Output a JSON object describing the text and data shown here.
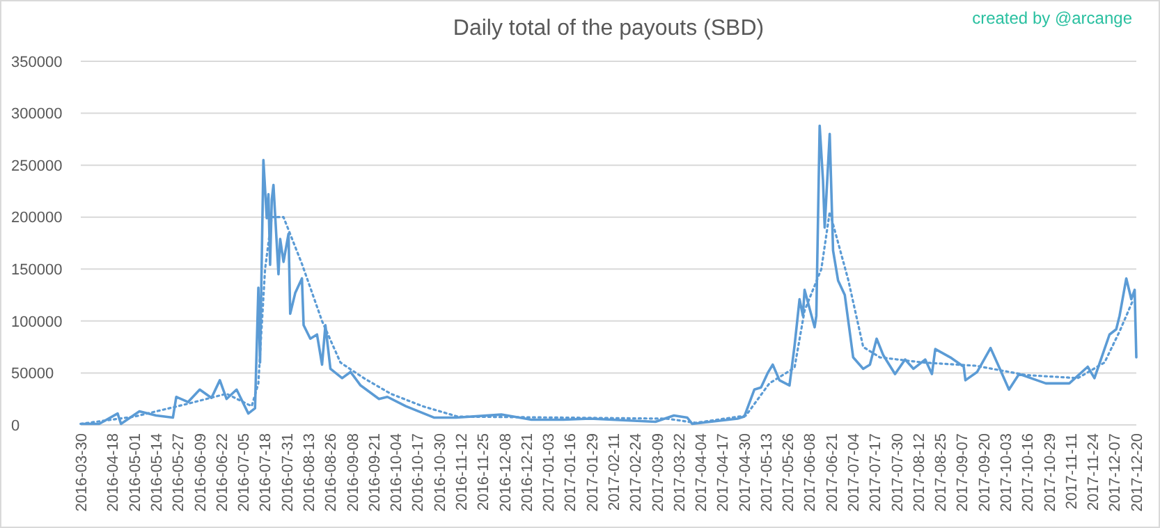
{
  "chart_data": {
    "type": "line",
    "title": "Daily total of the payouts (SBD)",
    "annotations": [
      "created by @arcange"
    ],
    "xlim": [
      "2016-03-30",
      "2017-12-20"
    ],
    "xticks": [
      "2016-03-30",
      "2016-04-18",
      "2016-05-01",
      "2016-05-14",
      "2016-05-27",
      "2016-06-09",
      "2016-06-22",
      "2016-07-05",
      "2016-07-18",
      "2016-07-31",
      "2016-08-13",
      "2016-08-26",
      "2016-09-08",
      "2016-09-21",
      "2016-10-04",
      "2016-10-17",
      "2016-10-30",
      "2016-11-12",
      "2016-11-25",
      "2016-12-08",
      "2016-12-21",
      "2017-01-03",
      "2017-01-16",
      "2017-01-29",
      "2017-02-11",
      "2017-02-24",
      "2017-03-09",
      "2017-03-22",
      "2017-04-04",
      "2017-04-17",
      "2017-04-30",
      "2017-05-13",
      "2017-05-26",
      "2017-06-08",
      "2017-06-21",
      "2017-07-04",
      "2017-07-17",
      "2017-07-30",
      "2017-08-12",
      "2017-08-25",
      "2017-09-07",
      "2017-09-20",
      "2017-10-03",
      "2017-10-16",
      "2017-10-29",
      "2017-11-11",
      "2017-11-24",
      "2017-12-07",
      "2017-12-20"
    ],
    "ylim": [
      0,
      350000
    ],
    "yticks": [
      0,
      50000,
      100000,
      150000,
      200000,
      250000,
      300000,
      350000
    ],
    "grid": "y",
    "series": [
      {
        "color": "#5b9bd5",
        "line_style": "solid",
        "x": [
          "2016-03-30",
          "2016-04-10",
          "2016-04-21",
          "2016-04-23",
          "2016-05-04",
          "2016-05-14",
          "2016-05-24",
          "2016-05-26",
          "2016-06-02",
          "2016-06-09",
          "2016-06-16",
          "2016-06-21",
          "2016-06-25",
          "2016-07-01",
          "2016-07-08",
          "2016-07-12",
          "2016-07-14",
          "2016-07-15",
          "2016-07-17",
          "2016-07-19",
          "2016-07-20",
          "2016-07-21",
          "2016-07-22",
          "2016-07-23",
          "2016-07-26",
          "2016-07-27",
          "2016-07-29",
          "2016-08-01",
          "2016-08-02",
          "2016-08-05",
          "2016-08-09",
          "2016-08-10",
          "2016-08-14",
          "2016-08-18",
          "2016-08-21",
          "2016-08-23",
          "2016-08-26",
          "2016-09-02",
          "2016-09-07",
          "2016-09-13",
          "2016-09-24",
          "2016-09-29",
          "2016-10-10",
          "2016-10-27",
          "2016-11-09",
          "2016-12-06",
          "2016-12-24",
          "2017-01-12",
          "2017-01-28",
          "2017-03-08",
          "2017-03-19",
          "2017-03-27",
          "2017-03-30",
          "2017-04-26",
          "2017-04-30",
          "2017-05-06",
          "2017-05-10",
          "2017-05-14",
          "2017-05-17",
          "2017-05-21",
          "2017-05-27",
          "2017-05-30",
          "2017-06-02",
          "2017-06-04",
          "2017-06-05",
          "2017-06-11",
          "2017-06-12",
          "2017-06-14",
          "2017-06-16",
          "2017-06-17",
          "2017-06-20",
          "2017-06-22",
          "2017-06-25",
          "2017-06-29",
          "2017-07-01",
          "2017-07-04",
          "2017-07-10",
          "2017-07-14",
          "2017-07-18",
          "2017-07-22",
          "2017-07-29",
          "2017-08-04",
          "2017-08-09",
          "2017-08-16",
          "2017-08-20",
          "2017-08-22",
          "2017-08-31",
          "2017-09-08",
          "2017-09-09",
          "2017-09-16",
          "2017-09-24",
          "2017-09-29",
          "2017-10-05",
          "2017-10-11",
          "2017-10-27",
          "2017-11-10",
          "2017-11-21",
          "2017-11-25",
          "2017-12-04",
          "2017-12-08",
          "2017-12-10",
          "2017-12-14",
          "2017-12-17",
          "2017-12-19",
          "2017-12-20"
        ],
        "values": [
          1000,
          1000,
          11000,
          1000,
          13000,
          9000,
          7000,
          27000,
          22000,
          34000,
          26000,
          43000,
          25000,
          34000,
          11000,
          16000,
          132000,
          60000,
          255000,
          199000,
          222000,
          154000,
          217000,
          231000,
          145000,
          179000,
          157000,
          184000,
          107000,
          127000,
          141000,
          96000,
          83000,
          87000,
          58000,
          96000,
          54000,
          45000,
          51000,
          38000,
          25000,
          27000,
          18000,
          7000,
          7000,
          10000,
          5000,
          5000,
          6000,
          3000,
          9000,
          7000,
          1000,
          6000,
          8000,
          34000,
          36000,
          50000,
          58000,
          43000,
          38000,
          76000,
          121000,
          105000,
          130000,
          94000,
          105000,
          288000,
          235000,
          190000,
          280000,
          168000,
          139000,
          125000,
          101000,
          65000,
          54000,
          58000,
          83000,
          67000,
          49000,
          63000,
          54000,
          63000,
          49000,
          73000,
          65000,
          56000,
          43000,
          51000,
          74000,
          56000,
          34000,
          49000,
          40000,
          40000,
          56000,
          45000,
          87000,
          92000,
          105000,
          141000,
          121000,
          130000,
          65000
        ]
      },
      {
        "color": "#5b9bd5",
        "line_style": "dotted",
        "x": [
          "2016-03-30",
          "2016-05-01",
          "2016-06-01",
          "2016-06-25",
          "2016-07-10",
          "2016-07-14",
          "2016-07-18",
          "2016-07-22",
          "2016-07-29",
          "2016-08-09",
          "2016-08-21",
          "2016-09-01",
          "2016-09-15",
          "2016-10-01",
          "2016-10-20",
          "2016-11-10",
          "2017-01-15",
          "2017-03-15",
          "2017-04-01",
          "2017-05-01",
          "2017-05-15",
          "2017-05-30",
          "2017-06-05",
          "2017-06-15",
          "2017-06-20",
          "2017-07-01",
          "2017-07-10",
          "2017-07-20",
          "2017-08-15",
          "2017-09-15",
          "2017-10-15",
          "2017-11-15",
          "2017-12-01",
          "2017-12-10",
          "2017-12-18"
        ],
        "values": [
          1000,
          8000,
          20000,
          30000,
          18000,
          40000,
          150000,
          200000,
          200000,
          155000,
          100000,
          60000,
          45000,
          30000,
          18000,
          8000,
          7000,
          6000,
          2000,
          9000,
          40000,
          55000,
          110000,
          150000,
          205000,
          140000,
          75000,
          65000,
          60000,
          57000,
          48000,
          45000,
          60000,
          90000,
          120000
        ]
      }
    ]
  }
}
